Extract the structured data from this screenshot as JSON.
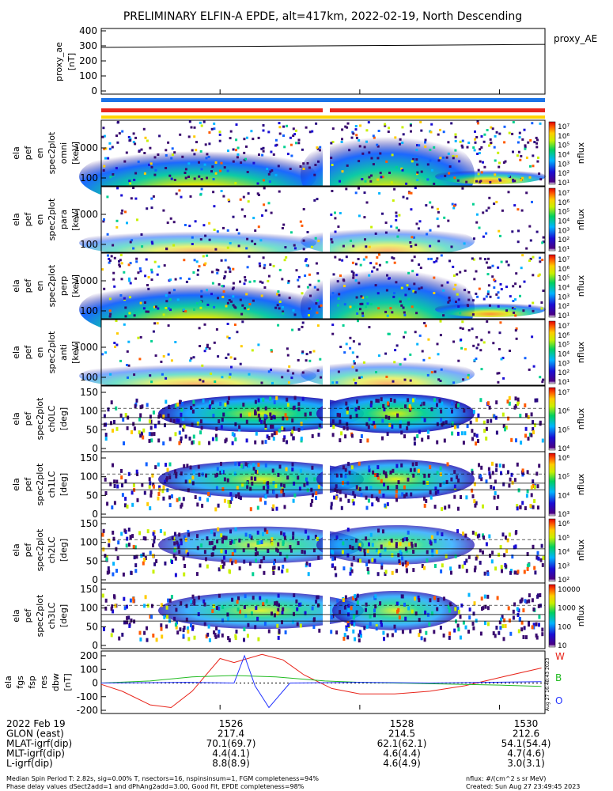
{
  "title": "PRELIMINARY ELFIN-A EPDE, alt=417km, 2022-02-19, North Descending",
  "colors": {
    "spin_blue": "#1a73e8",
    "sci_red": "#e8251b",
    "sci_yellow": "#ffd400",
    "white_curve": "#e8251b",
    "green_curve": "#22bb22",
    "blue_curve": "#2233ff"
  },
  "panels": [
    {
      "id": "proxy_ae",
      "ylabel": [
        "proxy_ae",
        "[nT]"
      ],
      "right_label": "proxy_AE",
      "ticks": [
        "400",
        "300",
        "200",
        "100",
        "0"
      ]
    },
    {
      "id": "pef_en_omni",
      "ylabel": [
        "ela",
        "pef",
        "en",
        "spec2plot",
        "omni",
        "[keV]"
      ],
      "ticks": [
        "1000",
        "100"
      ],
      "cbar_label": "nflux",
      "cbar_ticks": [
        "10⁷",
        "10⁶",
        "10⁵",
        "10⁴",
        "10³",
        "10²",
        "10¹"
      ]
    },
    {
      "id": "pef_en_para",
      "ylabel": [
        "ela",
        "pef",
        "en",
        "spec2plot",
        "para",
        "[keV]"
      ],
      "ticks": [
        "1000",
        "100"
      ],
      "cbar_label": "nflux",
      "cbar_ticks": [
        "10⁷",
        "10⁶",
        "10⁵",
        "10⁴",
        "10³",
        "10²",
        "10¹"
      ]
    },
    {
      "id": "pef_en_perp",
      "ylabel": [
        "ela",
        "pef",
        "en",
        "spec2plot",
        "perp",
        "[keV]"
      ],
      "ticks": [
        "1000",
        "100"
      ],
      "cbar_label": "nflux",
      "cbar_ticks": [
        "10⁷",
        "10⁶",
        "10⁵",
        "10⁴",
        "10³",
        "10²",
        "10¹"
      ]
    },
    {
      "id": "pef_en_anti",
      "ylabel": [
        "ela",
        "pef",
        "en",
        "spec2plot",
        "anti",
        "[keV]"
      ],
      "ticks": [
        "1000",
        "100"
      ],
      "cbar_label": "nflux",
      "cbar_ticks": [
        "10⁷",
        "10⁶",
        "10⁵",
        "10⁴",
        "10³",
        "10²",
        "10¹"
      ]
    },
    {
      "id": "pef_ch0LC",
      "ylabel": [
        "ela",
        "pef",
        "spec2plot",
        "ch0LC",
        "[deg]"
      ],
      "ticks": [
        "150",
        "100",
        "50",
        "0"
      ],
      "cbar_label": "nflux",
      "cbar_ticks": [
        "10⁷",
        "10⁶",
        "10⁵",
        "10⁴"
      ]
    },
    {
      "id": "pef_ch1LC",
      "ylabel": [
        "ela",
        "pef",
        "spec2plot",
        "ch1LC",
        "[deg]"
      ],
      "ticks": [
        "150",
        "100",
        "50",
        "0"
      ],
      "cbar_label": "nflux",
      "cbar_ticks": [
        "10⁶",
        "10⁵",
        "10⁴",
        "10³"
      ]
    },
    {
      "id": "pef_ch2LC",
      "ylabel": [
        "ela",
        "pef",
        "spec2plot",
        "ch2LC",
        "[deg]"
      ],
      "ticks": [
        "150",
        "100",
        "50",
        "0"
      ],
      "cbar_label": "nflux",
      "cbar_ticks": [
        "10⁶",
        "10⁵",
        "10⁴",
        "10³",
        "10²"
      ]
    },
    {
      "id": "pef_ch3LC",
      "ylabel": [
        "ela",
        "pef",
        "spec2plot",
        "ch3LC",
        "[deg]"
      ],
      "ticks": [
        "150",
        "100",
        "50",
        "0"
      ],
      "cbar_label": "nflux",
      "cbar_ticks": [
        "10000",
        "1000",
        "100",
        "10"
      ]
    },
    {
      "id": "fgs_res_dbw",
      "ylabel": [
        "ela",
        "fgs",
        "fsp",
        "res",
        "dbw",
        "[nT]"
      ],
      "ticks": [
        "200",
        "100",
        "0",
        "-100",
        "-200"
      ],
      "legend": [
        "W",
        "B",
        "O"
      ],
      "stamp": "Aug 27 16:48:43 2023"
    }
  ],
  "chart_data": {
    "type": "line",
    "title": "PRELIMINARY ELFIN-A EPDE, alt=417km, 2022-02-19, North Descending",
    "x": [
      "1526",
      "1528",
      "1530"
    ],
    "proxy_ae": {
      "ylim": [
        0,
        400
      ],
      "x": [
        "1524.5",
        "1530.5"
      ],
      "values": [
        290,
        310
      ]
    },
    "dbw": {
      "ylim": [
        -200,
        200
      ],
      "series": [
        {
          "name": "W",
          "color": "#e8251b",
          "x": [
            1524.3,
            1524.6,
            1525.0,
            1525.3,
            1525.6,
            1526.0,
            1526.2,
            1526.6,
            1526.9,
            1527.2,
            1527.6,
            1528.0,
            1528.5,
            1529.0,
            1529.5,
            1530.0,
            1530.6
          ],
          "values": [
            -10,
            -60,
            -160,
            -180,
            -60,
            180,
            150,
            210,
            170,
            60,
            -40,
            -80,
            -80,
            -60,
            -20,
            40,
            110
          ]
        },
        {
          "name": "B",
          "color": "#22bb22",
          "x": [
            1524.3,
            1525.0,
            1525.6,
            1526.2,
            1526.8,
            1527.5,
            1528.0,
            1529.0,
            1530.0,
            1530.6
          ],
          "values": [
            0,
            15,
            45,
            55,
            45,
            15,
            5,
            -5,
            -15,
            -25
          ]
        },
        {
          "name": "O",
          "color": "#2233ff",
          "x": [
            1524.3,
            1525.5,
            1526.2,
            1526.35,
            1526.5,
            1526.7,
            1527.0,
            1528.0,
            1529.0,
            1530.6
          ],
          "values": [
            0,
            5,
            0,
            200,
            -20,
            -180,
            0,
            5,
            0,
            10
          ]
        }
      ]
    },
    "energy_ticks": [
      "100",
      "1000"
    ],
    "pitch_ticks": [
      "0",
      "50",
      "100",
      "150"
    ]
  },
  "footer": {
    "rows": [
      {
        "label": "2022 Feb 19",
        "values": [
          "1526",
          "1528",
          "1530"
        ]
      },
      {
        "label": "GLON (east)",
        "values": [
          "217.4",
          "214.5",
          "212.6"
        ]
      },
      {
        "label": "MLAT-igrf(dip)",
        "values": [
          "70.1(69.7)",
          "62.1(62.1)",
          "54.1(54.4)"
        ]
      },
      {
        "label": "MLT-igrf(dip)",
        "values": [
          "4.4(4.1)",
          "4.6(4.4)",
          "4.7(4.6)"
        ]
      },
      {
        "label": "L-igrf(dip)",
        "values": [
          "8.8(8.9)",
          "4.6(4.9)",
          "3.0(3.1)"
        ]
      }
    ],
    "note1": "Median Spin Period T: 2.82s, sig=0.00% T, nsectors=16, nspinsinsum=1, FGM completeness=94%",
    "note2": "Phase delay values dSect2add=1 and dPhAng2add=3.00, Good Fit, EPDE completeness=98%",
    "units": "nflux: #/(cm^2 s sr MeV)",
    "created": "Created: Sun Aug 27 23:49:45 2023"
  }
}
